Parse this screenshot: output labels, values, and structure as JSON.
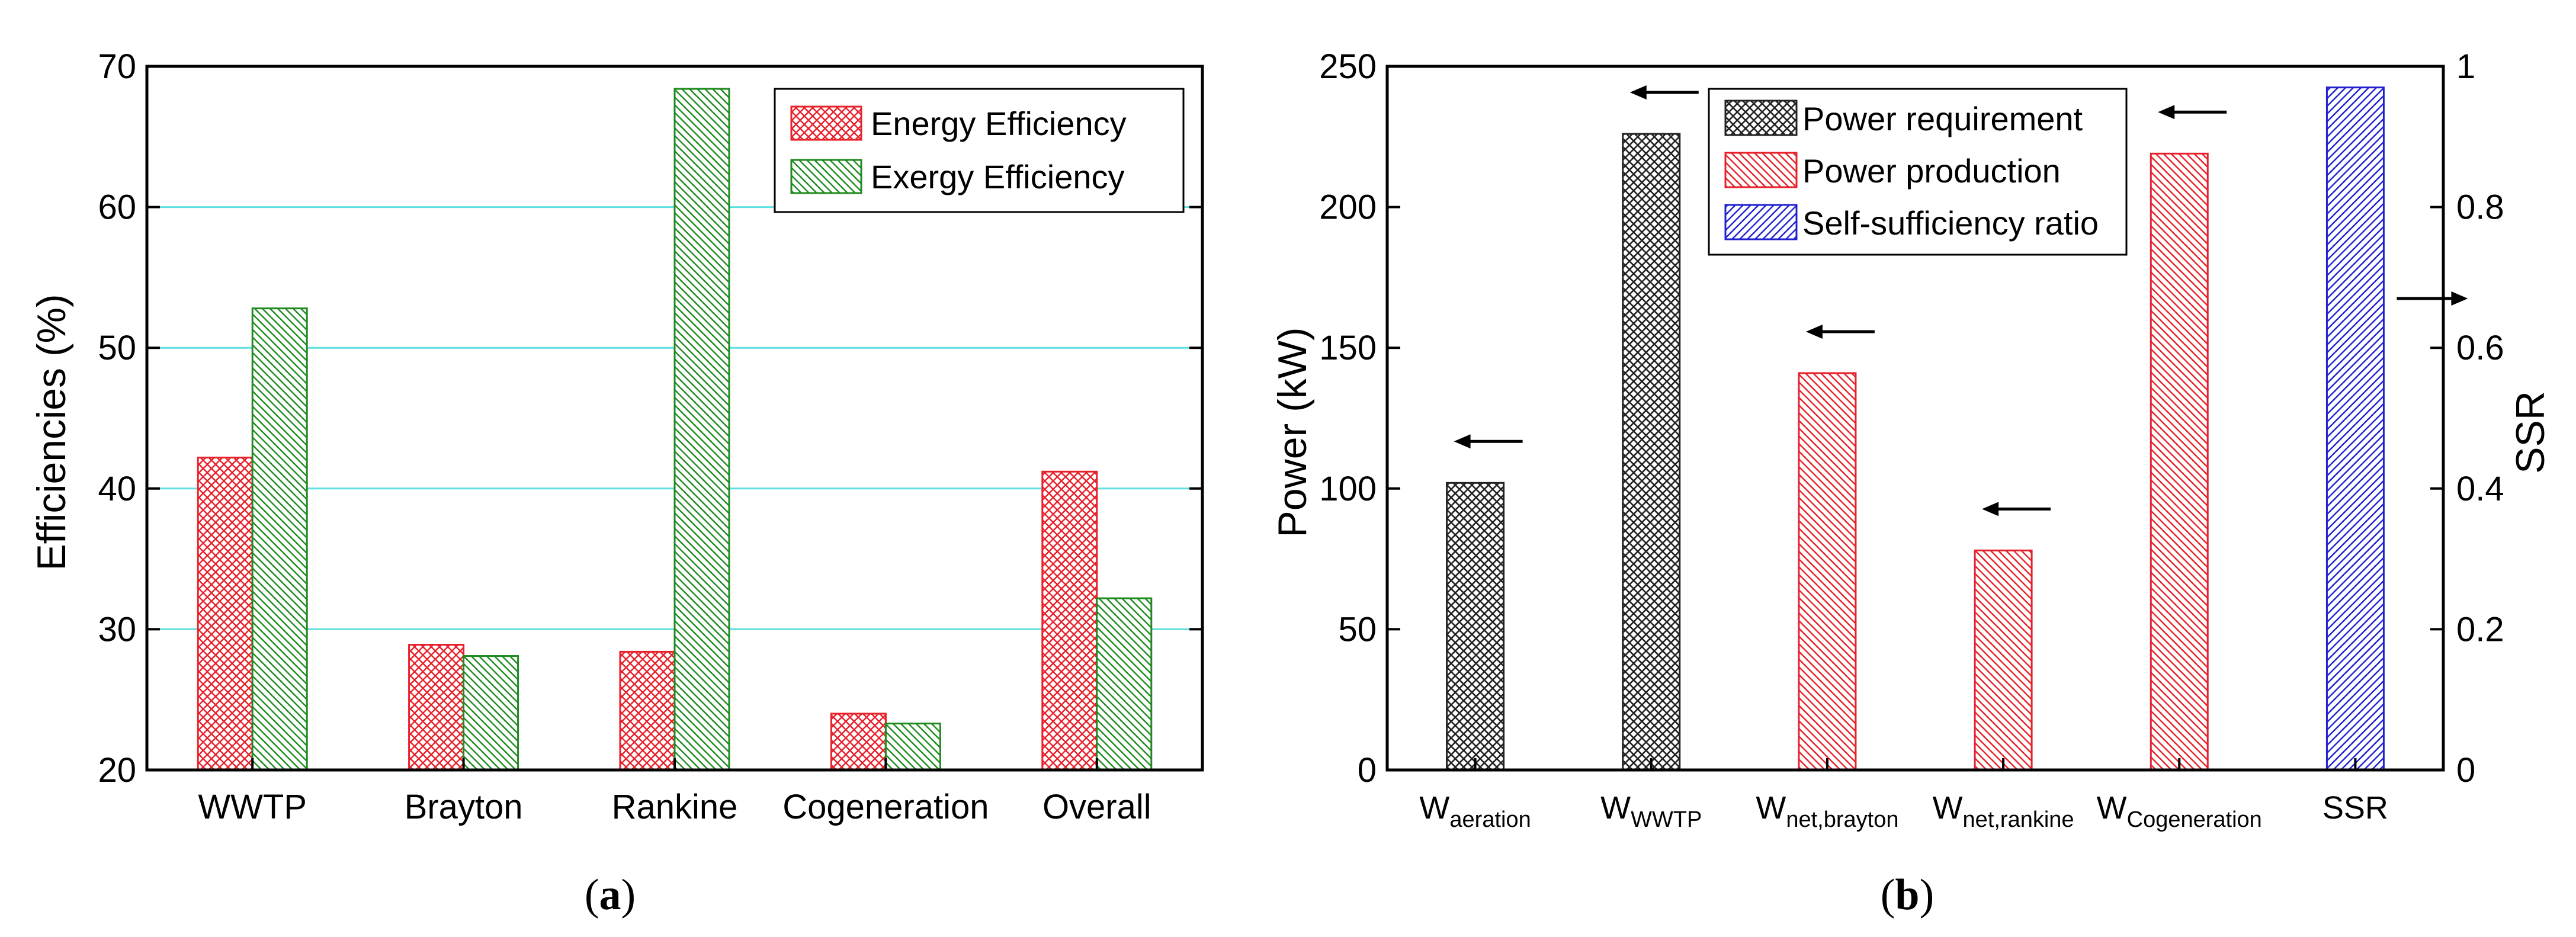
{
  "colors": {
    "energy": "#e8202a",
    "exergy": "#1f8a1f",
    "requirement": "#222222",
    "production": "#e8202a",
    "ssr": "#2020d0",
    "grid": "#5fe0e0"
  },
  "chart_data": [
    {
      "type": "bar",
      "panel_label": "a",
      "categories": [
        "WWTP",
        "Brayton",
        "Rankine",
        "Cogeneration",
        "Overall"
      ],
      "series": [
        {
          "name": "Energy Efficiency",
          "values": [
            42.2,
            28.9,
            28.4,
            24.0,
            41.2
          ]
        },
        {
          "name": "Exergy Efficiency",
          "values": [
            52.8,
            28.1,
            68.4,
            23.3,
            32.2
          ]
        }
      ],
      "ylabel": "Efficiencies (%)",
      "ylim": [
        20,
        70
      ],
      "yticks": [
        "20",
        "30",
        "40",
        "50",
        "60",
        "70"
      ],
      "grid": true,
      "legend": "top-right"
    },
    {
      "type": "bar",
      "panel_label": "b",
      "categories": [
        {
          "main": "W",
          "sub": "aeration"
        },
        {
          "main": "W",
          "sub": "WWTP"
        },
        {
          "main": "W",
          "sub": "net,brayton"
        },
        {
          "main": "W",
          "sub": "net,rankine"
        },
        {
          "main": "W",
          "sub": "Cogeneration"
        },
        {
          "main": "SSR",
          "sub": ""
        }
      ],
      "series": [
        {
          "name": "Power requirement",
          "axis": "left",
          "values": [
            102,
            226,
            null,
            null,
            null,
            null
          ]
        },
        {
          "name": "Power production",
          "axis": "left",
          "values": [
            null,
            null,
            141,
            78,
            219,
            null
          ]
        },
        {
          "name": "Self-sufficiency ratio",
          "axis": "right",
          "values": [
            null,
            null,
            null,
            null,
            null,
            0.97
          ]
        }
      ],
      "ylabel": "Power (kW)",
      "ylim": [
        0,
        250
      ],
      "yticks": [
        "0",
        "50",
        "100",
        "150",
        "200",
        "250"
      ],
      "y2label": "SSR",
      "y2lim": [
        0,
        1
      ],
      "y2ticks": [
        "0",
        "0.2",
        "0.4",
        "0.6",
        "0.8",
        "1"
      ],
      "legend": "top-center"
    }
  ],
  "captions": {
    "a": {
      "open": "(",
      "label": "a",
      "close": ")"
    },
    "b": {
      "open": "(",
      "label": "b",
      "close": ")"
    }
  }
}
